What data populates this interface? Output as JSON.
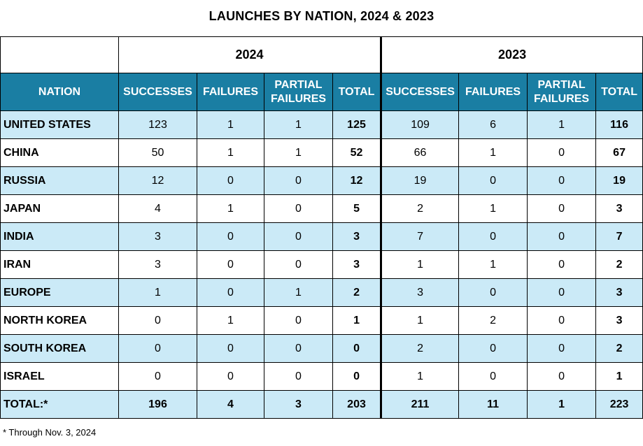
{
  "chart_data": {
    "type": "table",
    "title": "LAUNCHES BY NATION, 2024 & 2023",
    "years": [
      "2024",
      "2023"
    ],
    "columns": [
      "NATION",
      "SUCCESSES",
      "FAILURES",
      "PARTIAL FAILURES",
      "TOTAL",
      "SUCCESSES",
      "FAILURES",
      "PARTIAL FAILURES",
      "TOTAL"
    ],
    "rows": [
      {
        "nation": "UNITED STATES",
        "values": [
          123,
          1,
          1,
          125,
          109,
          6,
          1,
          116
        ]
      },
      {
        "nation": "CHINA",
        "values": [
          50,
          1,
          1,
          52,
          66,
          1,
          0,
          67
        ]
      },
      {
        "nation": "RUSSIA",
        "values": [
          12,
          0,
          0,
          12,
          19,
          0,
          0,
          19
        ]
      },
      {
        "nation": "JAPAN",
        "values": [
          4,
          1,
          0,
          5,
          2,
          1,
          0,
          3
        ]
      },
      {
        "nation": "INDIA",
        "values": [
          3,
          0,
          0,
          3,
          7,
          0,
          0,
          7
        ]
      },
      {
        "nation": "IRAN",
        "values": [
          3,
          0,
          0,
          3,
          1,
          1,
          0,
          2
        ]
      },
      {
        "nation": "EUROPE",
        "values": [
          1,
          0,
          1,
          2,
          3,
          0,
          0,
          3
        ]
      },
      {
        "nation": "NORTH KOREA",
        "values": [
          0,
          1,
          0,
          1,
          1,
          2,
          0,
          3
        ]
      },
      {
        "nation": "SOUTH KOREA",
        "values": [
          0,
          0,
          0,
          0,
          2,
          0,
          0,
          2
        ]
      },
      {
        "nation": "ISRAEL",
        "values": [
          0,
          0,
          0,
          0,
          1,
          0,
          0,
          1
        ]
      }
    ],
    "total_row": {
      "nation": "TOTAL:*",
      "values": [
        196,
        4,
        3,
        203,
        211,
        11,
        1,
        223
      ]
    },
    "footnote": "* Through Nov. 3, 2024"
  },
  "colors": {
    "header_bg": "#1a7ea3",
    "header_text": "#ffffff",
    "shaded_row": "#cbeaf7",
    "plain_row": "#ffffff"
  }
}
